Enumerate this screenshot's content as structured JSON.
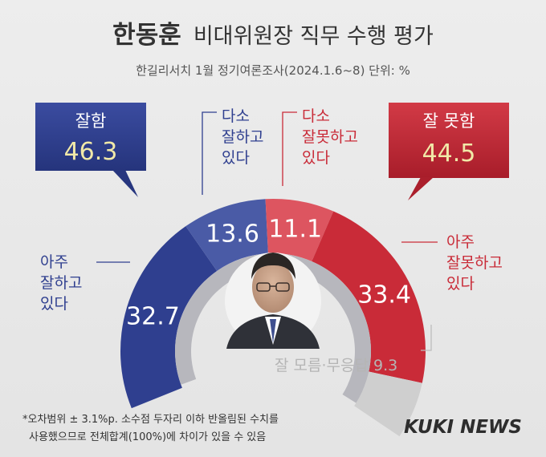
{
  "chart_data": {
    "type": "pie",
    "title_name": "한동훈",
    "title_rest": "비대위원장 직무 수행 평가",
    "subtitle": "한길리서치 1월 정기여론조사(2024.1.6~8) 단위: %",
    "slices": [
      {
        "label": "아주 잘하고 있다",
        "label_lines": [
          "아주",
          "잘하고",
          "있다"
        ],
        "value": 32.7,
        "display": "32.7",
        "color": "#2f3f8f"
      },
      {
        "label": "다소 잘하고 있다",
        "label_lines": [
          "다소",
          "잘하고",
          "있다"
        ],
        "value": 13.6,
        "display": "13.6",
        "color": "#4a5ba6"
      },
      {
        "label": "다소 잘못하고 있다",
        "label_lines": [
          "다소",
          "잘못하고",
          "있다"
        ],
        "value": 11.1,
        "display": "11.1",
        "color": "#dd5560"
      },
      {
        "label": "아주 잘못하고 있다",
        "label_lines": [
          "아주",
          "잘못하고",
          "있다"
        ],
        "value": 33.4,
        "display": "33.4",
        "color": "#c92b38"
      },
      {
        "label": "잘 모름·무응답",
        "value": 9.3,
        "display": "9.3",
        "color": "#cfcfcf"
      }
    ],
    "summary": {
      "positive": {
        "label": "잘함",
        "value": "46.3"
      },
      "negative": {
        "label": "잘 못함",
        "value": "44.5"
      }
    },
    "unknown_label": "잘 모름·무응답 9.3",
    "footnote_lines": [
      "*오차범위 ± 3.1%p. 소수점 두자리 이하 반올림된 수치를",
      "사용했으므로 전체합계(100%)에 차이가 있을 수 있음"
    ],
    "brand": "KUKI NEWS",
    "colors": {
      "navy": "#2f3f8f",
      "red": "#c92b38",
      "value_yellow": "#f1e9a8",
      "label_blue": "#2f3f8f",
      "label_red": "#c92b38"
    }
  }
}
